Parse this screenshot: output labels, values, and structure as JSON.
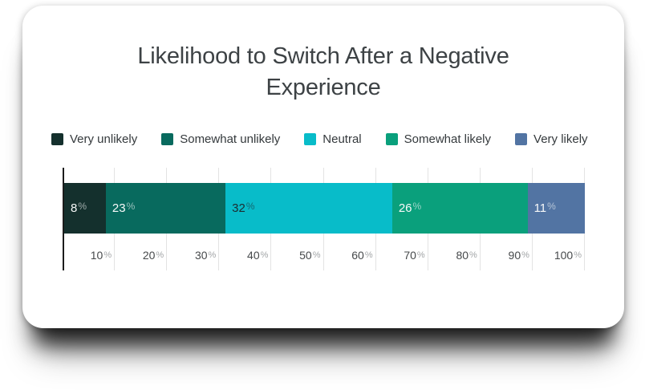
{
  "title": "Likelihood to Switch After a Negative Experience",
  "chart_data": {
    "type": "bar",
    "subtype": "horizontal_stacked",
    "title": "Likelihood to Switch After a Negative Experience",
    "categories": [
      "Very unlikely",
      "Somewhat unlikely",
      "Neutral",
      "Somewhat likely",
      "Very likely"
    ],
    "values": [
      8,
      23,
      32,
      26,
      11
    ],
    "unit": "%",
    "colors": [
      "#14302d",
      "#086a5e",
      "#08bcc9",
      "#0aa07c",
      "#5274a3"
    ],
    "label_colors": [
      "#f7f9f9",
      "#f7f9f9",
      "#1d2c31",
      "#f7f9f9",
      "#f7f9f9"
    ],
    "x_ticks": [
      10,
      20,
      30,
      40,
      50,
      60,
      70,
      80,
      90,
      100
    ],
    "xlim": [
      0,
      100
    ],
    "grid": true,
    "grid_color": "#e3e3e3",
    "axis_color": "#1c1c1c",
    "legend_position": "top-left"
  }
}
